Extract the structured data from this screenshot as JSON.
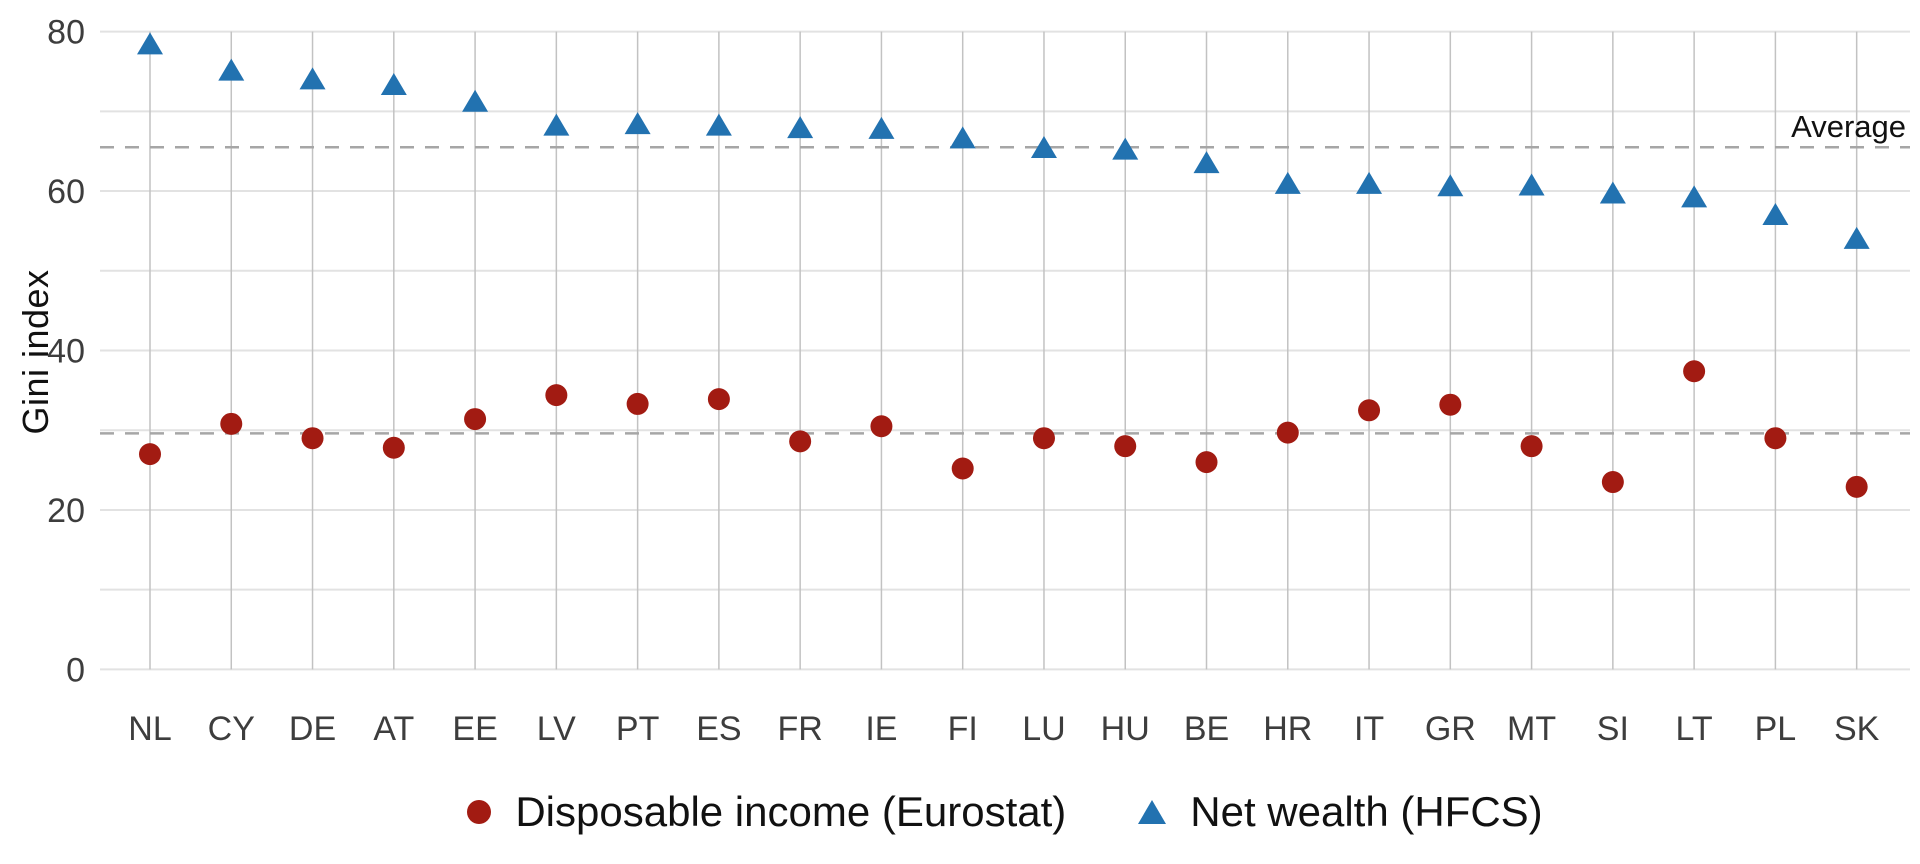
{
  "chart_data": {
    "type": "scatter",
    "title": "",
    "xlabel": "",
    "ylabel": "Gini index",
    "ylim": [
      0,
      84
    ],
    "yticks": [
      0,
      20,
      40,
      60,
      80
    ],
    "grid_step": 10,
    "grid": "on",
    "legend_position": "bottom",
    "average_label": "Average",
    "categories": [
      "NL",
      "CY",
      "DE",
      "AT",
      "EE",
      "LV",
      "PT",
      "ES",
      "FR",
      "IE",
      "FI",
      "LU",
      "HU",
      "BE",
      "HR",
      "IT",
      "GR",
      "MT",
      "SI",
      "LT",
      "PL",
      "SK"
    ],
    "series": [
      {
        "name": "Disposable income (Eurostat)",
        "marker": "circle",
        "color": "#a21b12",
        "average": 29.6,
        "values": [
          27.0,
          30.8,
          29.0,
          27.8,
          31.4,
          34.4,
          33.3,
          33.9,
          28.6,
          30.5,
          25.2,
          29.0,
          28.0,
          26.0,
          29.7,
          32.5,
          33.2,
          28.0,
          23.5,
          37.4,
          29.0,
          22.9
        ]
      },
      {
        "name": "Net wealth (HFCS)",
        "marker": "triangle",
        "color": "#2272b0",
        "average": 65.5,
        "values": [
          78.4,
          75.1,
          74.0,
          73.3,
          71.2,
          68.2,
          68.4,
          68.2,
          67.9,
          67.8,
          66.6,
          65.4,
          65.2,
          63.5,
          60.9,
          60.9,
          60.6,
          60.7,
          59.7,
          59.2,
          57.0,
          54.0
        ]
      }
    ]
  },
  "style_colors": {
    "h_gridline": "#e2e2e2",
    "v_gridline": "#c2c2c2",
    "dashed_line": "#a6a6a6",
    "tick_label": "#3d3d3d",
    "text": "#111111"
  }
}
